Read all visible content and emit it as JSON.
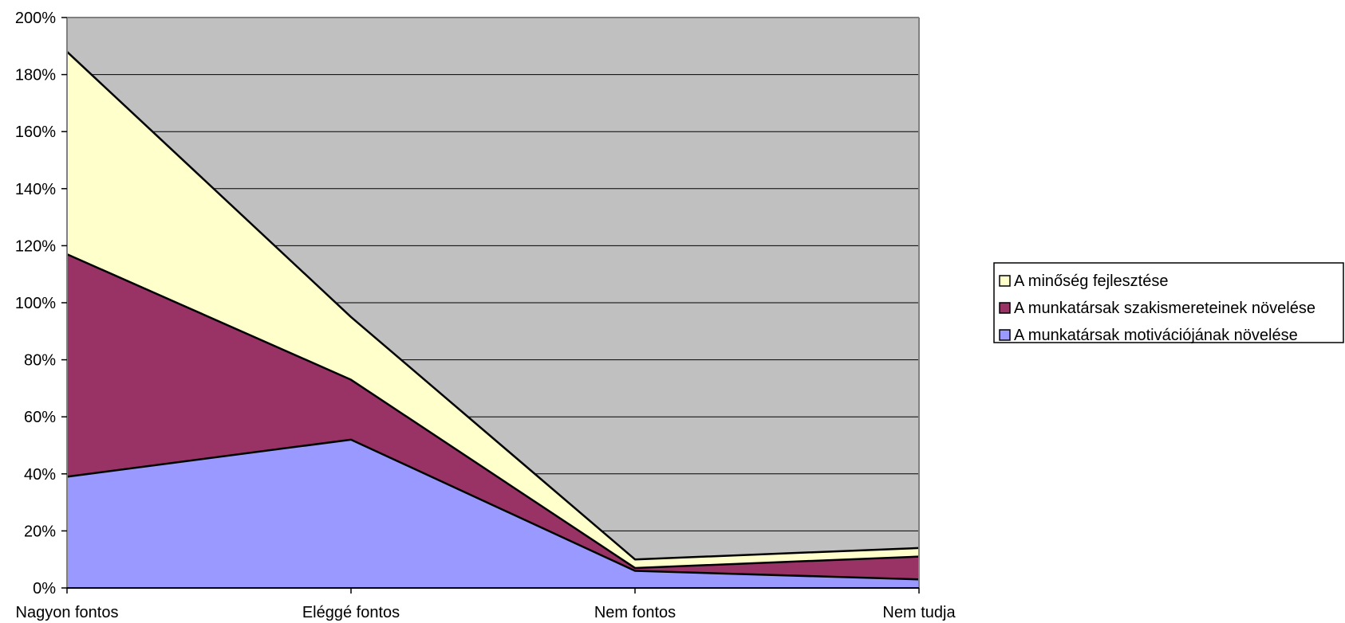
{
  "chart_data": {
    "type": "area",
    "stacked": true,
    "categories": [
      "Nagyon fontos",
      "Eléggé fontos",
      "Nem fontos",
      "Nem tudja"
    ],
    "series": [
      {
        "name": "A munkatársak motivációjának növelése",
        "values": [
          39,
          52,
          6,
          3
        ],
        "color": "#9999ff"
      },
      {
        "name": "A munkatársak szakismereteinek növelése",
        "values": [
          78,
          21,
          1,
          8
        ],
        "color": "#993366"
      },
      {
        "name": "A minőség fejlesztése",
        "values": [
          71,
          22,
          3,
          3
        ],
        "color": "#ffffcc"
      }
    ],
    "legend_order": [
      2,
      1,
      0
    ],
    "ylim": [
      0,
      200
    ],
    "y_ticks": [
      "0%",
      "20%",
      "40%",
      "60%",
      "80%",
      "100%",
      "120%",
      "140%",
      "160%",
      "180%",
      "200%"
    ],
    "grid": true,
    "plot_background": "#c0c0c0",
    "legend_position": "right",
    "title": "",
    "xlabel": "",
    "ylabel": ""
  }
}
